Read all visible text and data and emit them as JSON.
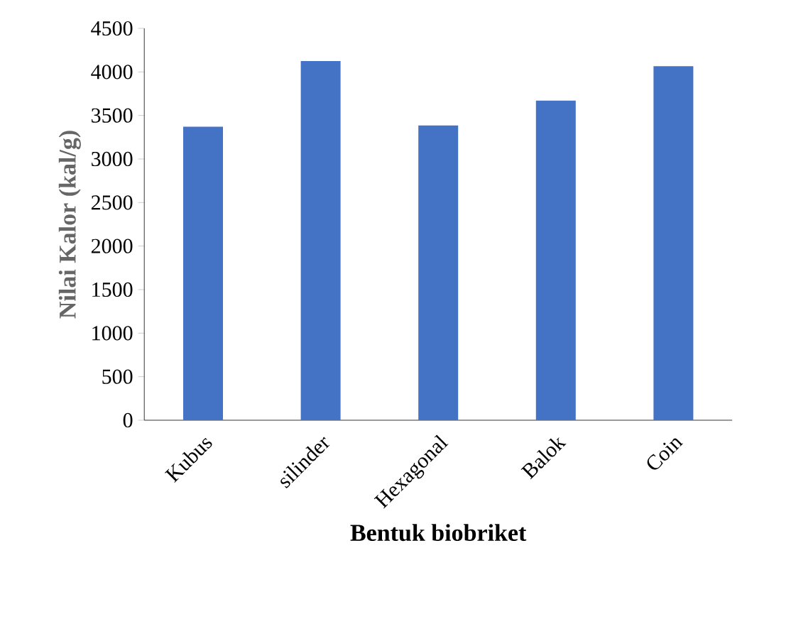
{
  "chart_data": {
    "type": "bar",
    "xlabel": "Bentuk biobriket",
    "ylabel": "Nilai Kalor (kal/g)",
    "categories": [
      "Kubus",
      "silinder",
      "Hexagonal",
      "Balok",
      "Coin"
    ],
    "values": [
      3370,
      4125,
      3385,
      3670,
      4065
    ],
    "color": "#4472c4",
    "ylim": [
      0,
      4500
    ],
    "yticks": [
      0,
      500,
      1000,
      1500,
      2000,
      2500,
      3000,
      3500,
      4000,
      4500
    ],
    "grid": false
  }
}
